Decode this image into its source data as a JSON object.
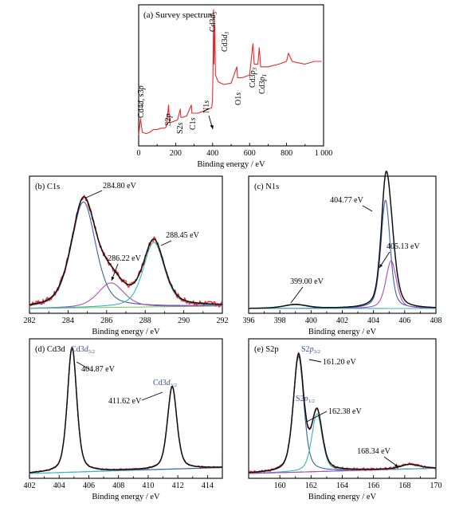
{
  "colors": {
    "measured": "#e32b2b",
    "fit_envelope": "#111111",
    "peak_blue": "#3a5fb0",
    "peak_purple": "#a94fb8",
    "peak_cyan": "#36b7bd",
    "background_green": "#7cc05a",
    "blue_label": "#3b4f9c"
  },
  "chart_data": [
    {
      "id": "a",
      "type": "line",
      "title": "(a) Survey spectrum",
      "xlabel": "Binding energy / eV",
      "ylabel": "",
      "xlim": [
        0,
        1000
      ],
      "xticks": [
        0,
        200,
        400,
        600,
        800,
        1000
      ],
      "xtick_labels": [
        "0",
        "200",
        "400",
        "600",
        "800",
        "1 000"
      ],
      "grid": false,
      "series": [
        {
          "role": "measured",
          "x": [
            0,
            10,
            20,
            40,
            60,
            80,
            100,
            120,
            140,
            150,
            162,
            166,
            170,
            190,
            210,
            225,
            228,
            240,
            260,
            285,
            288,
            300,
            320,
            340,
            360,
            380,
            395,
            399,
            402,
            405,
            407,
            412,
            415,
            430,
            460,
            500,
            531,
            535,
            560,
            600,
            618,
            625,
            645,
            652,
            660,
            700,
            760,
            800,
            810,
            830,
            860,
            900,
            950,
            990
          ],
          "y": [
            0.08,
            0.2,
            0.1,
            0.09,
            0.1,
            0.12,
            0.12,
            0.13,
            0.13,
            0.14,
            0.3,
            0.18,
            0.17,
            0.18,
            0.19,
            0.27,
            0.21,
            0.21,
            0.22,
            0.3,
            0.24,
            0.24,
            0.24,
            0.25,
            0.26,
            0.27,
            0.28,
            0.33,
            0.55,
            1.0,
            0.6,
            0.88,
            0.52,
            0.47,
            0.45,
            0.46,
            0.58,
            0.5,
            0.5,
            0.52,
            0.75,
            0.6,
            0.6,
            0.72,
            0.58,
            0.58,
            0.6,
            0.62,
            0.68,
            0.62,
            0.61,
            0.6,
            0.62,
            0.62
          ]
        }
      ],
      "peaks": [
        {
          "label_main": "Cd4",
          "label_italic": "d",
          "label_suffix": ", s3",
          "label_suffix_italic": "p",
          "x": 8
        },
        {
          "label_main": "S2",
          "label_italic": "p",
          "x": 162
        },
        {
          "label_main": "S2",
          "label_italic": "s",
          "x": 226
        },
        {
          "label_main": "C1",
          "label_italic": "s",
          "x": 285
        },
        {
          "label_main": "N1",
          "label_italic": "s",
          "x": 399
        },
        {
          "label_main": "Cd3",
          "label_italic": "d",
          "label_sub": "5",
          "x": 405
        },
        {
          "label_main": "Cd3",
          "label_italic": "d",
          "label_sub": "3",
          "x": 412
        },
        {
          "label_main": "O1",
          "label_italic": "s",
          "x": 531
        },
        {
          "label_main": "Cd3",
          "label_italic": "p",
          "label_sub": "3",
          "x": 618
        },
        {
          "label_main": "Cd3",
          "label_italic": "p",
          "label_sub": "1",
          "x": 652
        }
      ]
    },
    {
      "id": "b",
      "type": "line",
      "title": "(b) C1s",
      "xlabel": "Binding energy / eV",
      "ylabel": "",
      "xlim": [
        282,
        292
      ],
      "xticks": [
        282,
        284,
        286,
        288,
        290,
        292
      ],
      "grid": false,
      "background": [
        0.0,
        0.02
      ],
      "series": [
        {
          "role": "component",
          "color_key": "peak_blue",
          "center": 284.8,
          "fwhm": 1.5,
          "height": 0.82
        },
        {
          "role": "component",
          "color_key": "peak_purple",
          "center": 286.22,
          "fwhm": 1.6,
          "height": 0.19
        },
        {
          "role": "component",
          "color_key": "peak_cyan",
          "center": 288.45,
          "fwhm": 1.3,
          "height": 0.5
        },
        {
          "role": "measured",
          "noise": 0.022
        }
      ],
      "annotations": [
        {
          "text": "284.80 eV",
          "x": 284.8
        },
        {
          "text": "286.22 eV",
          "x": 286.22
        },
        {
          "text": "288.45 eV",
          "x": 288.45
        }
      ]
    },
    {
      "id": "c",
      "type": "line",
      "title": "(c) N1s",
      "xlabel": "Binding energy / eV",
      "ylabel": "",
      "xlim": [
        396,
        408
      ],
      "xticks": [
        396,
        398,
        400,
        402,
        404,
        406,
        408
      ],
      "grid": false,
      "background": [
        0.0,
        0.0
      ],
      "series": [
        {
          "role": "component",
          "color_key": "peak_blue",
          "center": 404.77,
          "fwhm": 0.7,
          "height": 0.84
        },
        {
          "role": "component",
          "color_key": "peak_purple",
          "center": 405.13,
          "fwhm": 0.8,
          "height": 0.37
        },
        {
          "role": "component",
          "color_key": "peak_blue",
          "center": 399.0,
          "fwhm": 1.8,
          "height": 0.03
        },
        {
          "role": "baseline",
          "color_key": "peak_cyan"
        }
      ],
      "annotations": [
        {
          "text": "404.77 eV",
          "x": 404.77
        },
        {
          "text": "405.13 eV",
          "x": 405.13
        },
        {
          "text": "399.00 eV",
          "x": 399.0
        }
      ]
    },
    {
      "id": "d",
      "type": "line",
      "title": "(d) Cd3d",
      "xlabel": "Binding energy / eV",
      "ylabel": "",
      "xlim": [
        402,
        415
      ],
      "xticks": [
        402,
        404,
        406,
        408,
        410,
        412,
        414
      ],
      "grid": false,
      "background": [
        0.0,
        0.045
      ],
      "series": [
        {
          "role": "component",
          "color_key": "peak_blue",
          "center": 404.87,
          "fwhm": 0.75,
          "height": 0.95
        },
        {
          "role": "component",
          "color_key": "peak_cyan",
          "center": 411.62,
          "fwhm": 0.75,
          "height": 0.63
        },
        {
          "role": "measured"
        }
      ],
      "annotations": [
        {
          "text": "404.87 eV",
          "x": 404.87
        },
        {
          "text": "411.62 eV",
          "x": 411.62
        }
      ],
      "peak_labels": [
        {
          "main": "Cd3",
          "italic": "d",
          "sub": "5/2"
        },
        {
          "main": "Cd3",
          "italic": "d",
          "sub": "3/2"
        }
      ]
    },
    {
      "id": "e",
      "type": "line",
      "title": "(e) S2p",
      "xlabel": "Binding energy / eV",
      "ylabel": "",
      "xlim": [
        158,
        170
      ],
      "xticks": [
        160,
        162,
        164,
        166,
        168,
        170
      ],
      "grid": false,
      "background": [
        0.0,
        0.04
      ],
      "series": [
        {
          "role": "component",
          "color_key": "peak_blue",
          "center": 161.2,
          "fwhm": 0.8,
          "height": 0.88
        },
        {
          "role": "component",
          "color_key": "peak_cyan",
          "center": 162.38,
          "fwhm": 0.8,
          "height": 0.44
        },
        {
          "role": "component",
          "color_key": "peak_purple",
          "center": 168.34,
          "fwhm": 1.4,
          "height": 0.035
        },
        {
          "role": "measured",
          "noise": 0.01
        }
      ],
      "annotations": [
        {
          "text": "161.20 eV",
          "x": 161.2
        },
        {
          "text": "162.38 eV",
          "x": 162.38
        },
        {
          "text": "168.34 eV",
          "x": 168.34
        }
      ],
      "peak_labels": [
        {
          "main": "S2",
          "italic": "p",
          "sub": "3/2"
        },
        {
          "main": "S2",
          "italic": "p",
          "sub": "1/2"
        }
      ]
    }
  ]
}
